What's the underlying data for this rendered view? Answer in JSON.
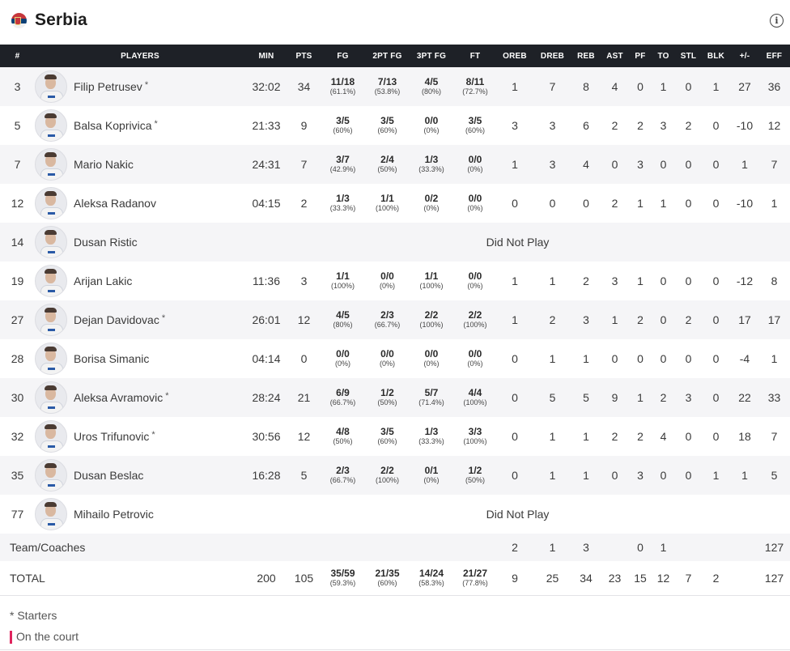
{
  "team": {
    "name": "Serbia",
    "flag_icon": "serbia-flag-icon",
    "info_icon": "info-icon"
  },
  "columns": [
    "#",
    "PLAYERS",
    "MIN",
    "PTS",
    "FG",
    "2PT FG",
    "3PT FG",
    "FT",
    "OREB",
    "DREB",
    "REB",
    "AST",
    "PF",
    "TO",
    "STL",
    "BLK",
    "+/-",
    "EFF"
  ],
  "players": [
    {
      "no": "3",
      "name": "Filip Petrusev",
      "star": "*",
      "min": "32:02",
      "pts": "34",
      "fg": {
        "m": "11/18",
        "p": "(61.1%)"
      },
      "fg2": {
        "m": "7/13",
        "p": "(53.8%)"
      },
      "fg3": {
        "m": "4/5",
        "p": "(80%)"
      },
      "ft": {
        "m": "8/11",
        "p": "(72.7%)"
      },
      "oreb": "1",
      "dreb": "7",
      "reb": "8",
      "ast": "4",
      "pf": "0",
      "to": "1",
      "stl": "0",
      "blk": "1",
      "pm": "27",
      "eff": "36"
    },
    {
      "no": "5",
      "name": "Balsa Koprivica",
      "star": "*",
      "min": "21:33",
      "pts": "9",
      "fg": {
        "m": "3/5",
        "p": "(60%)"
      },
      "fg2": {
        "m": "3/5",
        "p": "(60%)"
      },
      "fg3": {
        "m": "0/0",
        "p": "(0%)"
      },
      "ft": {
        "m": "3/5",
        "p": "(60%)"
      },
      "oreb": "3",
      "dreb": "3",
      "reb": "6",
      "ast": "2",
      "pf": "2",
      "to": "3",
      "stl": "2",
      "blk": "0",
      "pm": "-10",
      "eff": "12"
    },
    {
      "no": "7",
      "name": "Mario Nakic",
      "star": "",
      "min": "24:31",
      "pts": "7",
      "fg": {
        "m": "3/7",
        "p": "(42.9%)"
      },
      "fg2": {
        "m": "2/4",
        "p": "(50%)"
      },
      "fg3": {
        "m": "1/3",
        "p": "(33.3%)"
      },
      "ft": {
        "m": "0/0",
        "p": "(0%)"
      },
      "oreb": "1",
      "dreb": "3",
      "reb": "4",
      "ast": "0",
      "pf": "3",
      "to": "0",
      "stl": "0",
      "blk": "0",
      "pm": "1",
      "eff": "7"
    },
    {
      "no": "12",
      "name": "Aleksa Radanov",
      "star": "",
      "min": "04:15",
      "pts": "2",
      "fg": {
        "m": "1/3",
        "p": "(33.3%)"
      },
      "fg2": {
        "m": "1/1",
        "p": "(100%)"
      },
      "fg3": {
        "m": "0/2",
        "p": "(0%)"
      },
      "ft": {
        "m": "0/0",
        "p": "(0%)"
      },
      "oreb": "0",
      "dreb": "0",
      "reb": "0",
      "ast": "2",
      "pf": "1",
      "to": "1",
      "stl": "0",
      "blk": "0",
      "pm": "-10",
      "eff": "1"
    },
    {
      "no": "14",
      "name": "Dusan Ristic",
      "star": "",
      "dnp": "Did Not Play"
    },
    {
      "no": "19",
      "name": "Arijan Lakic",
      "star": "",
      "min": "11:36",
      "pts": "3",
      "fg": {
        "m": "1/1",
        "p": "(100%)"
      },
      "fg2": {
        "m": "0/0",
        "p": "(0%)"
      },
      "fg3": {
        "m": "1/1",
        "p": "(100%)"
      },
      "ft": {
        "m": "0/0",
        "p": "(0%)"
      },
      "oreb": "1",
      "dreb": "1",
      "reb": "2",
      "ast": "3",
      "pf": "1",
      "to": "0",
      "stl": "0",
      "blk": "0",
      "pm": "-12",
      "eff": "8"
    },
    {
      "no": "27",
      "name": "Dejan Davidovac",
      "star": "*",
      "min": "26:01",
      "pts": "12",
      "fg": {
        "m": "4/5",
        "p": "(80%)"
      },
      "fg2": {
        "m": "2/3",
        "p": "(66.7%)"
      },
      "fg3": {
        "m": "2/2",
        "p": "(100%)"
      },
      "ft": {
        "m": "2/2",
        "p": "(100%)"
      },
      "oreb": "1",
      "dreb": "2",
      "reb": "3",
      "ast": "1",
      "pf": "2",
      "to": "0",
      "stl": "2",
      "blk": "0",
      "pm": "17",
      "eff": "17"
    },
    {
      "no": "28",
      "name": "Borisa Simanic",
      "star": "",
      "min": "04:14",
      "pts": "0",
      "fg": {
        "m": "0/0",
        "p": "(0%)"
      },
      "fg2": {
        "m": "0/0",
        "p": "(0%)"
      },
      "fg3": {
        "m": "0/0",
        "p": "(0%)"
      },
      "ft": {
        "m": "0/0",
        "p": "(0%)"
      },
      "oreb": "0",
      "dreb": "1",
      "reb": "1",
      "ast": "0",
      "pf": "0",
      "to": "0",
      "stl": "0",
      "blk": "0",
      "pm": "-4",
      "eff": "1"
    },
    {
      "no": "30",
      "name": "Aleksa Avramovic",
      "star": "*",
      "min": "28:24",
      "pts": "21",
      "fg": {
        "m": "6/9",
        "p": "(66.7%)"
      },
      "fg2": {
        "m": "1/2",
        "p": "(50%)"
      },
      "fg3": {
        "m": "5/7",
        "p": "(71.4%)"
      },
      "ft": {
        "m": "4/4",
        "p": "(100%)"
      },
      "oreb": "0",
      "dreb": "5",
      "reb": "5",
      "ast": "9",
      "pf": "1",
      "to": "2",
      "stl": "3",
      "blk": "0",
      "pm": "22",
      "eff": "33"
    },
    {
      "no": "32",
      "name": "Uros Trifunovic",
      "star": "*",
      "min": "30:56",
      "pts": "12",
      "fg": {
        "m": "4/8",
        "p": "(50%)"
      },
      "fg2": {
        "m": "3/5",
        "p": "(60%)"
      },
      "fg3": {
        "m": "1/3",
        "p": "(33.3%)"
      },
      "ft": {
        "m": "3/3",
        "p": "(100%)"
      },
      "oreb": "0",
      "dreb": "1",
      "reb": "1",
      "ast": "2",
      "pf": "2",
      "to": "4",
      "stl": "0",
      "blk": "0",
      "pm": "18",
      "eff": "7"
    },
    {
      "no": "35",
      "name": "Dusan Beslac",
      "star": "",
      "min": "16:28",
      "pts": "5",
      "fg": {
        "m": "2/3",
        "p": "(66.7%)"
      },
      "fg2": {
        "m": "2/2",
        "p": "(100%)"
      },
      "fg3": {
        "m": "0/1",
        "p": "(0%)"
      },
      "ft": {
        "m": "1/2",
        "p": "(50%)"
      },
      "oreb": "0",
      "dreb": "1",
      "reb": "1",
      "ast": "0",
      "pf": "3",
      "to": "0",
      "stl": "0",
      "blk": "1",
      "pm": "1",
      "eff": "5"
    },
    {
      "no": "77",
      "name": "Mihailo Petrovic",
      "star": "",
      "dnp": "Did Not Play"
    }
  ],
  "team_row": {
    "label": "Team/Coaches",
    "oreb": "2",
    "dreb": "1",
    "reb": "3",
    "ast": "",
    "pf": "0",
    "to": "1",
    "stl": "",
    "blk": "",
    "pm": "",
    "eff": "127"
  },
  "total_row": {
    "label": "TOTAL",
    "min": "200",
    "pts": "105",
    "fg": {
      "m": "35/59",
      "p": "(59.3%)"
    },
    "fg2": {
      "m": "21/35",
      "p": "(60%)"
    },
    "fg3": {
      "m": "14/24",
      "p": "(58.3%)"
    },
    "ft": {
      "m": "21/27",
      "p": "(77.8%)"
    },
    "oreb": "9",
    "dreb": "25",
    "reb": "34",
    "ast": "23",
    "pf": "15",
    "to": "12",
    "stl": "7",
    "blk": "2",
    "pm": "",
    "eff": "127"
  },
  "legend": {
    "starters": "* Starters",
    "on_court": "On the court"
  },
  "colors": {
    "header_bg": "#1e2127",
    "row_alt": "#f5f5f7",
    "on_court_marker": "#e0245e"
  }
}
